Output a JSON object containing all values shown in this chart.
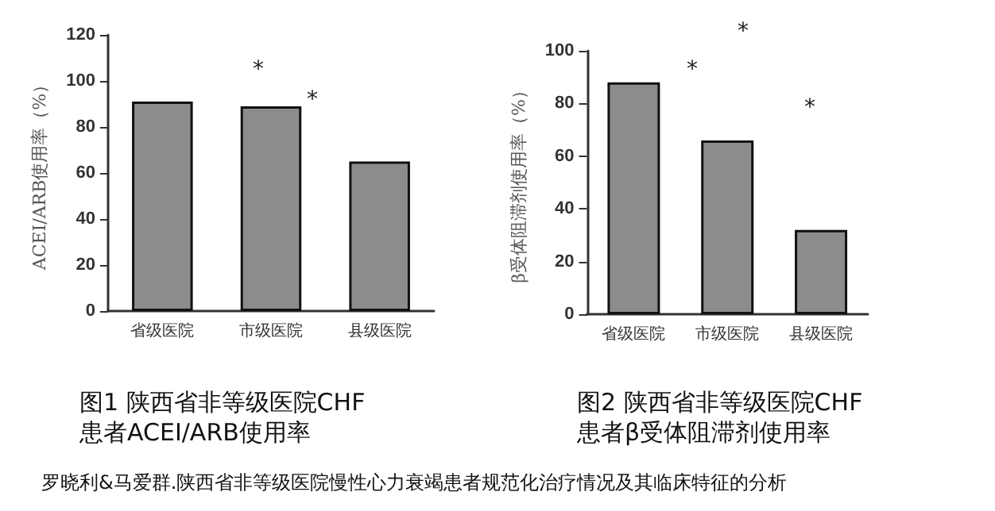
{
  "chart_data": [
    {
      "type": "bar",
      "title": "图1 陕西省非等级医院CHF\n患者ACEI/ARB使用率",
      "ylabel": "ACEI/ARB使用率（%）",
      "categories": [
        "省级医院",
        "市级医院",
        "县级医院"
      ],
      "values": [
        91,
        89,
        65
      ],
      "color": "#8c8c8c",
      "ylim": [
        0,
        120
      ],
      "yticks": [
        0,
        20,
        40,
        60,
        80,
        100,
        120
      ],
      "grid": false,
      "annotations": [
        "*",
        "*",
        "罗晓利&马爱群.陕西省非等级医院慢性心力衰竭患者规范化治疗情况及其临床特征的分析"
      ]
    },
    {
      "type": "bar",
      "title": "图2 陕西省非等级医院CHF\n患者β受体阻滞剂使用率",
      "ylabel": "β受体阻滞剂使用率（%）",
      "categories": [
        "省级医院",
        "市级医院",
        "县级医院"
      ],
      "values": [
        88,
        66,
        32
      ],
      "color": "#8c8c8c",
      "ylim": [
        0,
        100
      ],
      "yticks": [
        0,
        20,
        40,
        60,
        80,
        100
      ],
      "grid": false,
      "annotations": [
        "*",
        "*",
        "*"
      ]
    }
  ]
}
